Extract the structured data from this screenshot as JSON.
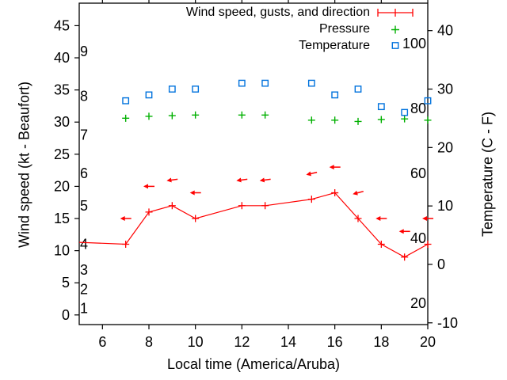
{
  "chart_data": {
    "type": "line",
    "title": "",
    "xlabel": "Local time (America/Aruba)",
    "ylabel_left": "Wind speed (kt - Beaufort)",
    "ylabel_right": "Temperature (C - F)",
    "x_range": [
      5,
      20
    ],
    "x_ticks": [
      6,
      8,
      10,
      12,
      14,
      16,
      18,
      20
    ],
    "y_left_range_kt": [
      -1.5,
      48.5
    ],
    "y_left_ticks_kt": [
      0,
      5,
      10,
      15,
      20,
      25,
      30,
      35,
      40,
      45
    ],
    "beaufort_inner_labels": [
      {
        "beaufort": 1,
        "kt": 1
      },
      {
        "beaufort": 2,
        "kt": 4
      },
      {
        "beaufort": 3,
        "kt": 7
      },
      {
        "beaufort": 4,
        "kt": 11
      },
      {
        "beaufort": 5,
        "kt": 17
      },
      {
        "beaufort": 6,
        "kt": 22
      },
      {
        "beaufort": 7,
        "kt": 28
      },
      {
        "beaufort": 8,
        "kt": 34
      },
      {
        "beaufort": 9,
        "kt": 41
      }
    ],
    "y_right_range_c": [
      -10.3,
      44.7
    ],
    "y_right_ticks_c": [
      -10,
      0,
      10,
      20,
      30,
      40
    ],
    "fahrenheit_inner_labels": [
      20,
      40,
      60,
      80,
      100
    ],
    "grid": false,
    "legend_position": "top-right-inside",
    "x": [
      7,
      8,
      9,
      10,
      12,
      13,
      15,
      16,
      17,
      18,
      19,
      20
    ],
    "series": [
      {
        "name": "Wind speed, gusts, and direction",
        "style": "line-with-plus-markers",
        "axis": "left",
        "color": "#ff0000",
        "values_kt": [
          11,
          16,
          17,
          15,
          17,
          17,
          18,
          19,
          15,
          11,
          9,
          11
        ],
        "lead_in_point": {
          "x": 5,
          "value_kt": 11.3
        }
      },
      {
        "name": "Wind gust direction arrows",
        "style": "left-pointing-arrows",
        "axis": "left",
        "color": "#ff0000",
        "values_kt": [
          15,
          20,
          21,
          19,
          21,
          21,
          22,
          23,
          19,
          15,
          13,
          15
        ],
        "tilt_deg": [
          0,
          0,
          -8,
          0,
          -8,
          -8,
          -13,
          0,
          -15,
          0,
          0,
          0
        ]
      },
      {
        "name": "Pressure",
        "style": "plus-points",
        "axis": "left",
        "color": "#00b000",
        "scale_note": "plotted without visible scale; values are positions read on left kt axis",
        "values_left_axis_units": [
          30.6,
          30.9,
          31.0,
          31.1,
          31.1,
          31.1,
          30.3,
          30.3,
          30.1,
          30.4,
          30.5,
          30.3
        ]
      },
      {
        "name": "Temperature",
        "style": "open-square-points",
        "axis": "right",
        "color": "#0072dd",
        "values_c": [
          28,
          29,
          30,
          30,
          31,
          31,
          31,
          29,
          30,
          27,
          26,
          28
        ]
      }
    ],
    "legend": {
      "entries": [
        {
          "label": "Wind speed, gusts, and direction",
          "marker": "red-errorbar-sample"
        },
        {
          "label": "Pressure",
          "marker": "green-plus"
        },
        {
          "label": "Temperature",
          "marker": "blue-open-square"
        }
      ]
    }
  }
}
